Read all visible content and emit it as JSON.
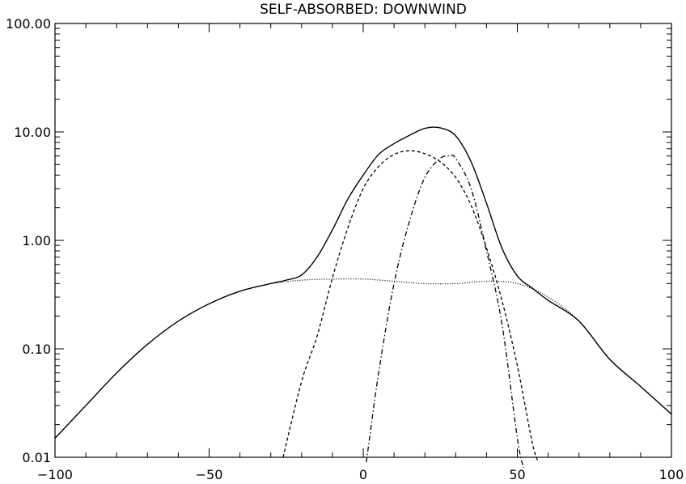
{
  "chart_data": {
    "type": "line",
    "title": "SELF-ABSORBED: DOWNWIND",
    "xlabel": "",
    "ylabel": "",
    "xlim": [
      -100,
      100
    ],
    "ylim": [
      0.01,
      100
    ],
    "yscale": "log",
    "grid": false,
    "legend": "none",
    "x_ticks": [
      -100,
      -50,
      0,
      50,
      100
    ],
    "x_tick_labels": [
      "−100",
      "−50",
      "0",
      "50",
      "100"
    ],
    "y_ticks": [
      0.01,
      0.1,
      1,
      10,
      100
    ],
    "y_tick_labels": [
      "0.01",
      "0.10",
      "1.00",
      "10.00",
      "100.00"
    ],
    "series": [
      {
        "style": "solid",
        "x": [
          -100,
          -90,
          -80,
          -70,
          -60,
          -50,
          -40,
          -30,
          -25,
          -20,
          -15,
          -10,
          -5,
          0,
          5,
          10,
          15,
          20,
          25,
          30,
          35,
          40,
          45,
          50,
          55,
          60,
          70,
          80,
          90,
          100
        ],
        "y": [
          0.015,
          0.03,
          0.06,
          0.11,
          0.18,
          0.26,
          0.34,
          0.4,
          0.43,
          0.48,
          0.7,
          1.25,
          2.4,
          4.0,
          6.2,
          7.8,
          9.3,
          10.8,
          10.9,
          9.2,
          5.3,
          2.2,
          0.85,
          0.47,
          0.36,
          0.28,
          0.18,
          0.08,
          0.045,
          0.025
        ]
      },
      {
        "style": "dashed",
        "x": [
          -26,
          -20,
          -15,
          -10,
          -5,
          0,
          5,
          10,
          15,
          20,
          25,
          30,
          35,
          40,
          45,
          50,
          55,
          57
        ],
        "y": [
          0.01,
          0.05,
          0.13,
          0.45,
          1.3,
          3.0,
          4.8,
          6.2,
          6.7,
          6.3,
          5.3,
          3.8,
          2.1,
          0.85,
          0.28,
          0.07,
          0.013,
          0.009
        ]
      },
      {
        "style": "dashdot",
        "x": [
          1,
          5,
          10,
          15,
          20,
          25,
          28,
          30,
          35,
          40,
          45,
          50,
          52
        ],
        "y": [
          0.009,
          0.06,
          0.4,
          1.5,
          3.8,
          5.7,
          6.0,
          5.7,
          3.0,
          0.8,
          0.17,
          0.015,
          0.008
        ]
      },
      {
        "style": "dotted",
        "x": [
          -30,
          -20,
          -10,
          0,
          10,
          20,
          30,
          40,
          50,
          60,
          70,
          80,
          90,
          100
        ],
        "y": [
          0.4,
          0.43,
          0.44,
          0.44,
          0.42,
          0.4,
          0.4,
          0.42,
          0.4,
          0.3,
          0.18,
          0.08,
          0.045,
          0.025
        ]
      }
    ]
  }
}
